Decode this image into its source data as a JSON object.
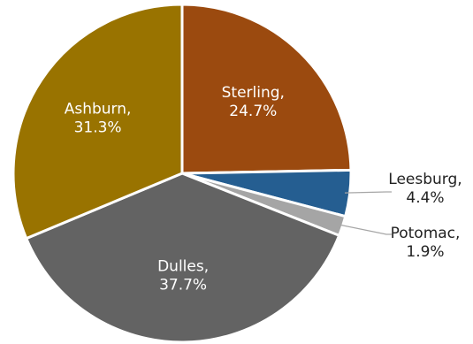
{
  "chart_data": {
    "type": "pie",
    "slices": [
      {
        "label": "Sterling",
        "value": 24.7,
        "value_text": "24.7%",
        "color": "#9b4a0f",
        "label_position": "inside"
      },
      {
        "label": "Leesburg",
        "value": 4.4,
        "value_text": "4.4%",
        "color": "#255e91",
        "label_position": "outside"
      },
      {
        "label": "Potomac",
        "value": 1.9,
        "value_text": "1.9%",
        "color": "#a5a5a5",
        "label_position": "outside"
      },
      {
        "label": "Dulles",
        "value": 37.7,
        "value_text": "37.7%",
        "color": "#636363",
        "label_position": "inside"
      },
      {
        "label": "Ashburn",
        "value": 31.3,
        "value_text": "31.3%",
        "color": "#997300",
        "label_position": "inside"
      }
    ],
    "start_position": "top",
    "direction": "clockwise",
    "legend": "none"
  }
}
